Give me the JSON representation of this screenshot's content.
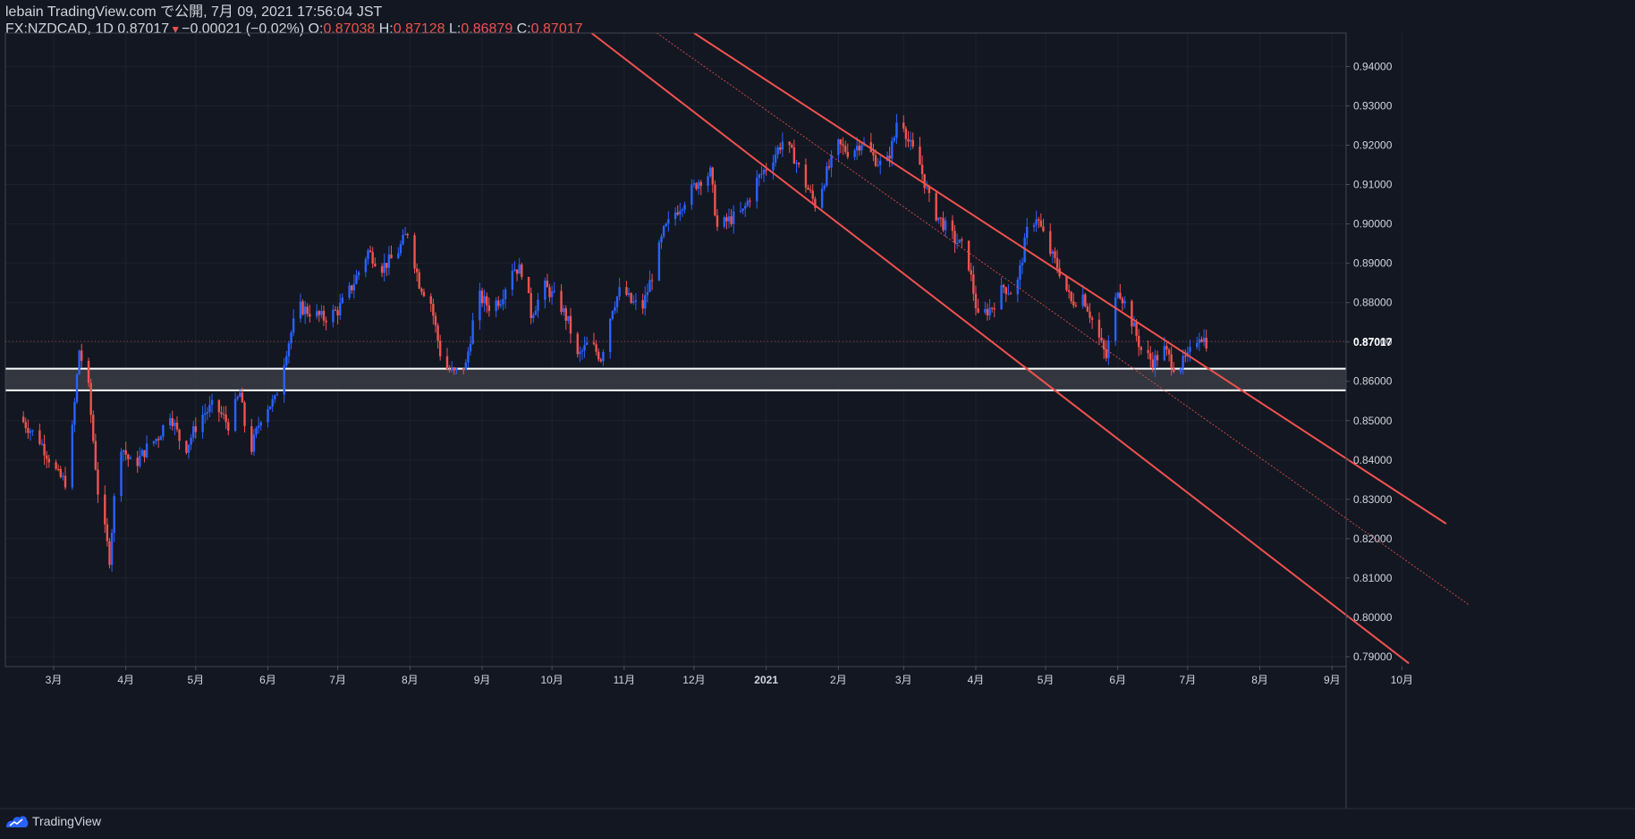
{
  "header": {
    "published": "lebain TradingView.com で公開, 7月 09, 2021 17:56:04 JST",
    "symbol": "FX:NZDCAD, 1D",
    "last": "0.87017",
    "change": "−0.00021 (−0.02%)",
    "o_label": "O:",
    "o_value": "0.87038",
    "h_label": "H:",
    "h_value": "0.87128",
    "l_label": "L:",
    "l_value": "0.86879",
    "c_label": "C:",
    "c_value": "0.87017"
  },
  "brand": {
    "name": "TradingView",
    "icon": "tradingview-logo-icon"
  },
  "colors": {
    "background": "#131722",
    "up": "#2962ff",
    "down": "#ef5350",
    "channel": "#f0524e",
    "zone": "#ffffff",
    "grid": "#1e222d",
    "text": "#d1d4dc"
  },
  "chart_data": {
    "type": "candlestick",
    "symbol": "FX:NZDCAD",
    "interval": "1D",
    "title": "",
    "xlabel": "",
    "ylabel": "",
    "ylim": [
      0.7875,
      0.9485
    ],
    "y_ticks": [
      "0.94000",
      "0.93000",
      "0.92000",
      "0.91000",
      "0.90000",
      "0.89000",
      "0.88000",
      "0.87000",
      "0.86000",
      "0.85000",
      "0.84000",
      "0.83000",
      "0.82000",
      "0.81000",
      "0.80000",
      "0.79000"
    ],
    "x_ticks": [
      "3月",
      "4月",
      "5月",
      "6月",
      "7月",
      "8月",
      "9月",
      "10月",
      "11月",
      "12月",
      "2021",
      "2月",
      "3月",
      "4月",
      "5月",
      "6月",
      "7月",
      "8月",
      "9月",
      "10月"
    ],
    "last_price_label": "0.87017",
    "support_zone": {
      "upper": 0.8632,
      "lower": 0.8577
    },
    "price_path": [
      [
        "2020-02-15",
        0.851
      ],
      [
        "2020-02-24",
        0.845
      ],
      [
        "2020-03-03",
        0.836
      ],
      [
        "2020-03-07",
        0.834
      ],
      [
        "2020-03-12",
        0.868
      ],
      [
        "2020-03-16",
        0.858
      ],
      [
        "2020-03-20",
        0.832
      ],
      [
        "2020-03-23",
        0.822
      ],
      [
        "2020-03-25",
        0.815
      ],
      [
        "2020-03-29",
        0.845
      ],
      [
        "2020-04-04",
        0.838
      ],
      [
        "2020-04-10",
        0.843
      ],
      [
        "2020-04-15",
        0.846
      ],
      [
        "2020-04-20",
        0.852
      ],
      [
        "2020-04-26",
        0.842
      ],
      [
        "2020-05-03",
        0.851
      ],
      [
        "2020-05-09",
        0.854
      ],
      [
        "2020-05-15",
        0.849
      ],
      [
        "2020-05-20",
        0.857
      ],
      [
        "2020-05-24",
        0.841
      ],
      [
        "2020-05-30",
        0.853
      ],
      [
        "2020-06-04",
        0.855
      ],
      [
        "2020-06-09",
        0.868
      ],
      [
        "2020-06-14",
        0.879
      ],
      [
        "2020-06-25",
        0.876
      ],
      [
        "2020-07-01",
        0.878
      ],
      [
        "2020-07-07",
        0.884
      ],
      [
        "2020-07-14",
        0.893
      ],
      [
        "2020-07-20",
        0.889
      ],
      [
        "2020-07-26",
        0.892
      ],
      [
        "2020-07-31",
        0.898
      ],
      [
        "2020-08-05",
        0.885
      ],
      [
        "2020-08-10",
        0.88
      ],
      [
        "2020-08-15",
        0.864
      ],
      [
        "2020-08-20",
        0.862
      ],
      [
        "2020-08-25",
        0.864
      ],
      [
        "2020-08-30",
        0.882
      ],
      [
        "2020-09-04",
        0.879
      ],
      [
        "2020-09-09",
        0.881
      ],
      [
        "2020-09-14",
        0.889
      ],
      [
        "2020-09-19",
        0.888
      ],
      [
        "2020-09-22",
        0.877
      ],
      [
        "2020-09-28",
        0.884
      ],
      [
        "2020-10-04",
        0.88
      ],
      [
        "2020-10-08",
        0.875
      ],
      [
        "2020-10-12",
        0.866
      ],
      [
        "2020-10-17",
        0.87
      ],
      [
        "2020-10-22",
        0.866
      ],
      [
        "2020-10-27",
        0.879
      ],
      [
        "2020-10-31",
        0.884
      ],
      [
        "2020-11-04",
        0.88
      ],
      [
        "2020-11-09",
        0.879
      ],
      [
        "2020-11-13",
        0.887
      ],
      [
        "2020-11-18",
        0.898
      ],
      [
        "2020-11-23",
        0.903
      ],
      [
        "2020-11-28",
        0.907
      ],
      [
        "2020-12-03",
        0.911
      ],
      [
        "2020-12-08",
        0.913
      ],
      [
        "2020-12-11",
        0.899
      ],
      [
        "2020-12-16",
        0.901
      ],
      [
        "2020-12-22",
        0.903
      ],
      [
        "2020-12-28",
        0.911
      ],
      [
        "2021-01-03",
        0.916
      ],
      [
        "2021-01-08",
        0.921
      ],
      [
        "2021-01-13",
        0.917
      ],
      [
        "2021-01-18",
        0.91
      ],
      [
        "2021-01-22",
        0.905
      ],
      [
        "2021-01-27",
        0.913
      ],
      [
        "2021-02-01",
        0.92
      ],
      [
        "2021-02-06",
        0.918
      ],
      [
        "2021-02-11",
        0.921
      ],
      [
        "2021-02-16",
        0.917
      ],
      [
        "2021-02-21",
        0.914
      ],
      [
        "2021-02-25",
        0.922
      ],
      [
        "2021-02-27",
        0.93
      ],
      [
        "2021-03-03",
        0.921
      ],
      [
        "2021-03-08",
        0.915
      ],
      [
        "2021-03-13",
        0.904
      ],
      [
        "2021-03-18",
        0.9
      ],
      [
        "2021-03-23",
        0.896
      ],
      [
        "2021-03-28",
        0.893
      ],
      [
        "2021-04-02",
        0.876
      ],
      [
        "2021-04-08",
        0.879
      ],
      [
        "2021-04-13",
        0.884
      ],
      [
        "2021-04-18",
        0.882
      ],
      [
        "2021-04-23",
        0.898
      ],
      [
        "2021-04-27",
        0.902
      ],
      [
        "2021-05-02",
        0.894
      ],
      [
        "2021-05-07",
        0.888
      ],
      [
        "2021-05-12",
        0.88
      ],
      [
        "2021-05-17",
        0.882
      ],
      [
        "2021-05-22",
        0.874
      ],
      [
        "2021-05-27",
        0.866
      ],
      [
        "2021-06-01",
        0.884
      ],
      [
        "2021-06-06",
        0.877
      ],
      [
        "2021-06-11",
        0.868
      ],
      [
        "2021-06-16",
        0.865
      ],
      [
        "2021-06-21",
        0.868
      ],
      [
        "2021-06-26",
        0.863
      ],
      [
        "2021-07-01",
        0.866
      ],
      [
        "2021-07-06",
        0.872
      ],
      [
        "2021-07-09",
        0.87
      ]
    ],
    "channel": {
      "upper": [
        [
          "2020-12-01",
          0.9485
        ],
        [
          "2021-10-20",
          0.8238
        ]
      ],
      "lower": [
        [
          "2020-10-18",
          0.9485
        ],
        [
          "2021-10-04",
          0.7883
        ]
      ],
      "middle": [
        [
          "2020-11-15",
          0.9485
        ],
        [
          "2021-10-30",
          0.8031
        ]
      ]
    }
  }
}
